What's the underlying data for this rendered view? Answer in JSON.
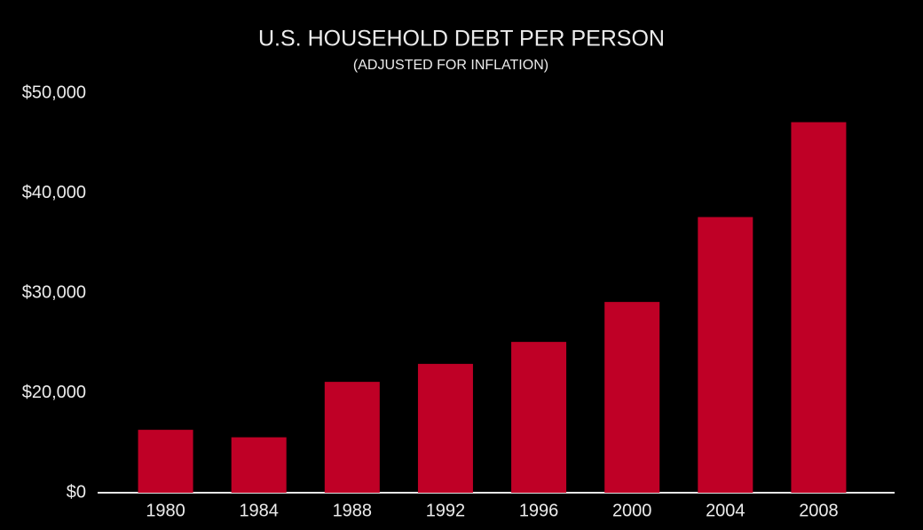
{
  "chart_data": {
    "type": "bar",
    "title": "U.S. HOUSEHOLD DEBT PER PERSON",
    "subtitle": "(ADJUSTED FOR INFLATION)",
    "categories": [
      "1980",
      "1984",
      "1988",
      "1992",
      "1996",
      "2000",
      "2004",
      "2008"
    ],
    "values": [
      12600,
      11100,
      21100,
      22900,
      25100,
      29100,
      37600,
      47100
    ],
    "color": "#bf0026",
    "ylim": [
      0,
      50000
    ],
    "yticks": [
      {
        "value": 0,
        "label": "$0"
      },
      {
        "value": 20000,
        "label": "$20,000"
      },
      {
        "value": 30000,
        "label": "$30,000"
      },
      {
        "value": 40000,
        "label": "$40,000"
      },
      {
        "value": 50000,
        "label": "$50,000"
      }
    ],
    "grid": false
  }
}
